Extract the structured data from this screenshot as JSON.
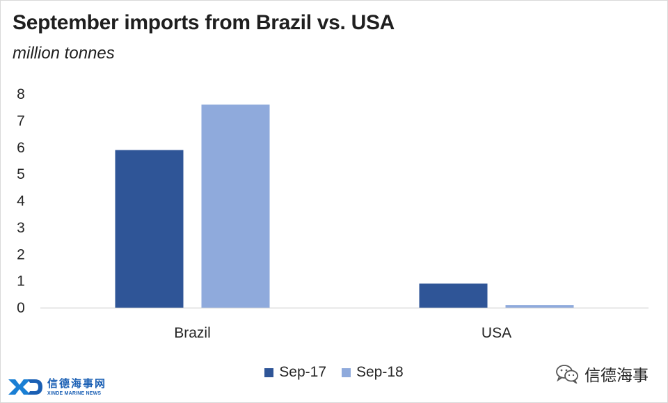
{
  "chart_data": {
    "type": "bar",
    "title": "September imports from Brazil vs. USA",
    "subtitle": "million tonnes",
    "xlabel": "",
    "ylabel": "",
    "categories": [
      "Brazil",
      "USA"
    ],
    "series": [
      {
        "name": "Sep-17",
        "values": [
          5.9,
          0.9
        ],
        "color": "#2f5597"
      },
      {
        "name": "Sep-18",
        "values": [
          7.6,
          0.1
        ],
        "color": "#8faadc"
      }
    ],
    "ylim": [
      0,
      8
    ],
    "yticks": [
      0,
      1,
      2,
      3,
      4,
      5,
      6,
      7,
      8
    ],
    "grid": false,
    "legend_position": "bottom"
  },
  "branding": {
    "left_logo_cn": "信德海事网",
    "left_logo_en": "XINDE MARINE NEWS",
    "left_logo_icon": "xd-logo-icon",
    "right_text": "信德海事",
    "right_icon": "wechat-icon"
  }
}
